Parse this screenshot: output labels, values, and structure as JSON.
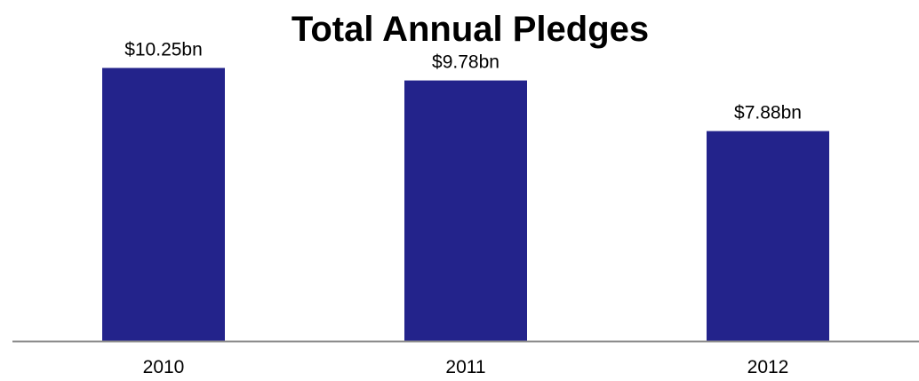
{
  "chart_data": {
    "type": "bar",
    "title": "Total Annual Pledges",
    "xlabel": "",
    "ylabel": "",
    "categories": [
      "2010",
      "2011",
      "2012"
    ],
    "values": [
      10.25,
      9.78,
      7.88
    ],
    "data_labels": [
      "$10.25bn",
      "$9.78bn",
      "$7.88bn"
    ],
    "ylim": [
      0,
      12.2
    ],
    "grid": false,
    "legend": "none",
    "colors": {
      "bar": "#23238b",
      "axis": "#8c8c8c",
      "text": "#000000"
    }
  }
}
